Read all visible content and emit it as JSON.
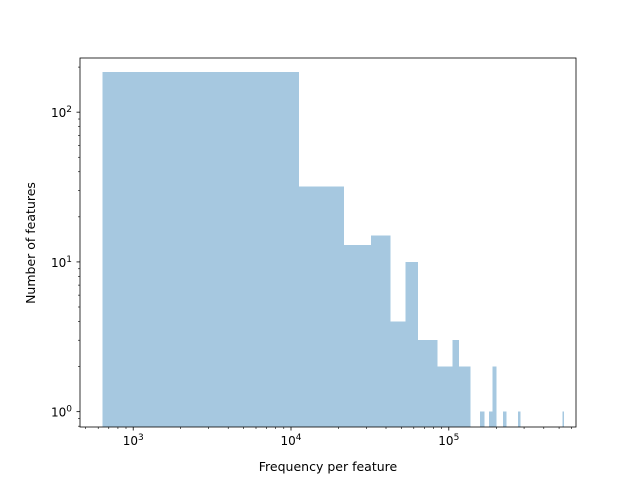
{
  "chart_data": {
    "type": "bar",
    "title": "",
    "xlabel": "Frequency per feature",
    "ylabel": "Number of features",
    "xscale": "log",
    "yscale": "log",
    "xlim": [
      460,
      640000
    ],
    "ylim": [
      0.79,
      230
    ],
    "x_ticks": [
      {
        "base": "10",
        "exp": "3",
        "value": 1000
      },
      {
        "base": "10",
        "exp": "4",
        "value": 10000
      },
      {
        "base": "10",
        "exp": "5",
        "value": 100000
      }
    ],
    "y_ticks": [
      {
        "base": "10",
        "exp": "0",
        "value": 1
      },
      {
        "base": "10",
        "exp": "1",
        "value": 10
      },
      {
        "base": "10",
        "exp": "2",
        "value": 100
      }
    ],
    "bar_color": "#a6c8e0",
    "bins": [
      {
        "x0": 640,
        "x1": 11200,
        "count": 185
      },
      {
        "x0": 11200,
        "x1": 21700,
        "count": 32
      },
      {
        "x0": 21700,
        "x1": 32200,
        "count": 13
      },
      {
        "x0": 32200,
        "x1": 42700,
        "count": 15
      },
      {
        "x0": 42700,
        "x1": 53200,
        "count": 4
      },
      {
        "x0": 53200,
        "x1": 63700,
        "count": 10
      },
      {
        "x0": 63700,
        "x1": 84700,
        "count": 3
      },
      {
        "x0": 84700,
        "x1": 105700,
        "count": 2
      },
      {
        "x0": 105700,
        "x1": 116200,
        "count": 3
      },
      {
        "x0": 116200,
        "x1": 137200,
        "count": 2
      },
      {
        "x0": 158200,
        "x1": 168700,
        "count": 1
      },
      {
        "x0": 179200,
        "x1": 189700,
        "count": 1
      },
      {
        "x0": 189700,
        "x1": 200200,
        "count": 2
      },
      {
        "x0": 221200,
        "x1": 231700,
        "count": 1
      },
      {
        "x0": 273700,
        "x1": 284200,
        "count": 1
      },
      {
        "x0": 525700,
        "x1": 536200,
        "count": 1
      }
    ]
  }
}
